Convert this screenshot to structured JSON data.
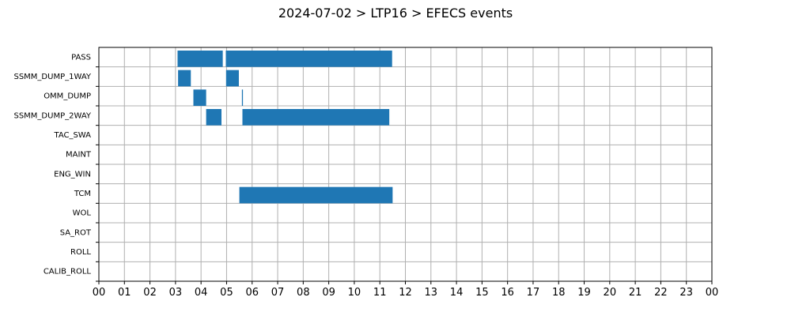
{
  "chart_data": {
    "type": "bar",
    "orientation": "horizontal-timeline",
    "title": "2024-07-02 > LTP16 > EFECS events",
    "xlabel": "",
    "ylabel": "",
    "x_tick_labels": [
      "00",
      "01",
      "02",
      "03",
      "04",
      "05",
      "06",
      "07",
      "08",
      "09",
      "10",
      "11",
      "12",
      "13",
      "14",
      "15",
      "16",
      "17",
      "18",
      "19",
      "20",
      "21",
      "22",
      "23",
      "00"
    ],
    "xlim_hours": [
      0,
      24
    ],
    "grid": true,
    "bar_color": "#1f77b4",
    "categories": [
      "PASS",
      "SSMM_DUMP_1WAY",
      "OMM_DUMP",
      "SSMM_DUMP_2WAY",
      "TAC_SWA",
      "MAINT",
      "ENG_WIN",
      "TCM",
      "WOL",
      "SA_ROT",
      "ROLL",
      "CALIB_ROLL"
    ],
    "events": [
      {
        "category": "PASS",
        "start": 3.08,
        "end": 4.85
      },
      {
        "category": "PASS",
        "start": 4.97,
        "end": 11.48
      },
      {
        "category": "SSMM_DUMP_1WAY",
        "start": 3.1,
        "end": 3.6
      },
      {
        "category": "SSMM_DUMP_1WAY",
        "start": 4.98,
        "end": 5.48
      },
      {
        "category": "OMM_DUMP",
        "start": 3.7,
        "end": 4.2
      },
      {
        "category": "OMM_DUMP",
        "start": 5.6,
        "end": 5.64
      },
      {
        "category": "SSMM_DUMP_2WAY",
        "start": 4.2,
        "end": 4.8
      },
      {
        "category": "SSMM_DUMP_2WAY",
        "start": 5.62,
        "end": 11.37
      },
      {
        "category": "TCM",
        "start": 5.5,
        "end": 11.5
      }
    ]
  }
}
